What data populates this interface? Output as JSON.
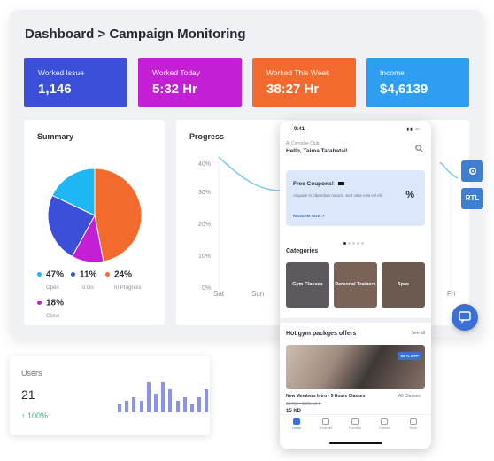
{
  "breadcrumb": "Dashboard > Campaign Monitoring",
  "kpis": [
    {
      "label": "Worked Issue",
      "value": "1,146",
      "color": "#3b4fd8"
    },
    {
      "label": "Worked Today",
      "value": "5:32 Hr",
      "color": "#c51fd6"
    },
    {
      "label": "Worked This Week",
      "value": "38:27 Hr",
      "color": "#f26a2e"
    },
    {
      "label": "Income",
      "value": "$4,6139",
      "color": "#2f9df0"
    }
  ],
  "summary": {
    "title": "Summary",
    "chart_data": {
      "type": "pie",
      "title": "Summary",
      "slices": [
        {
          "label": "Open",
          "value": 47,
          "color": "#f26a2e"
        },
        {
          "label": "To Do",
          "value": 11,
          "color": "#c51fd6"
        },
        {
          "label": "In Progress",
          "value": 24,
          "color": "#3b4fd8"
        },
        {
          "label": "Close",
          "value": 18,
          "color": "#1fb6f5"
        }
      ]
    },
    "legend": [
      {
        "pct": "47%",
        "label": "Open",
        "color": "#1fb6f5"
      },
      {
        "pct": "11%",
        "label": "To Do",
        "color": "#3b4fd8"
      },
      {
        "pct": "24%",
        "label": "In Progress",
        "color": "#f26a2e"
      },
      {
        "pct": "18%",
        "label": "Close",
        "color": "#c51fd6"
      }
    ]
  },
  "progress": {
    "title": "Progress",
    "y_ticks": [
      "40%",
      "30%",
      "20%",
      "10%",
      "0%"
    ],
    "x_ticks": [
      "Sat",
      "Sun",
      "Fri"
    ]
  },
  "side": {
    "rtl_label": "RTL",
    "accent": "#3d7fd1"
  },
  "users": {
    "title": "Users",
    "count": "21",
    "growth": "100%",
    "chart_data": {
      "type": "bar",
      "values": [
        2,
        3,
        4,
        3,
        8,
        5,
        8,
        6,
        3,
        4,
        2,
        4,
        6
      ],
      "ylim": [
        0,
        8
      ]
    }
  },
  "phone": {
    "time": "9:41",
    "club": "Al Corniche Club",
    "greeting": "Hello, Taima Tatabatai!",
    "coupon": {
      "title": "Free Coupons!",
      "desc": "Aliquam in bibendum mauris. Sed vitae erat vel elit.",
      "cta": "REDEEM NOW >"
    },
    "categories_title": "Categories",
    "categories": [
      {
        "label": "Gym Classes",
        "color": "#5c5a5e"
      },
      {
        "label": "Personal Trainers",
        "color": "#7a6258"
      },
      {
        "label": "Spas",
        "color": "#6b5a50"
      }
    ],
    "offers_title": "Hot gym packges offers",
    "see_all": "See all",
    "promo_tag": "50 % OFF",
    "offer_name": "New Members Intro - 5 Hours Classes",
    "offer_category": "All Classes",
    "old_price": "30 KD • 50% OFF",
    "new_price": "15 KD",
    "tabs": [
      "Home",
      "Schedule",
      "Favorites",
      "Passes",
      "More"
    ]
  }
}
